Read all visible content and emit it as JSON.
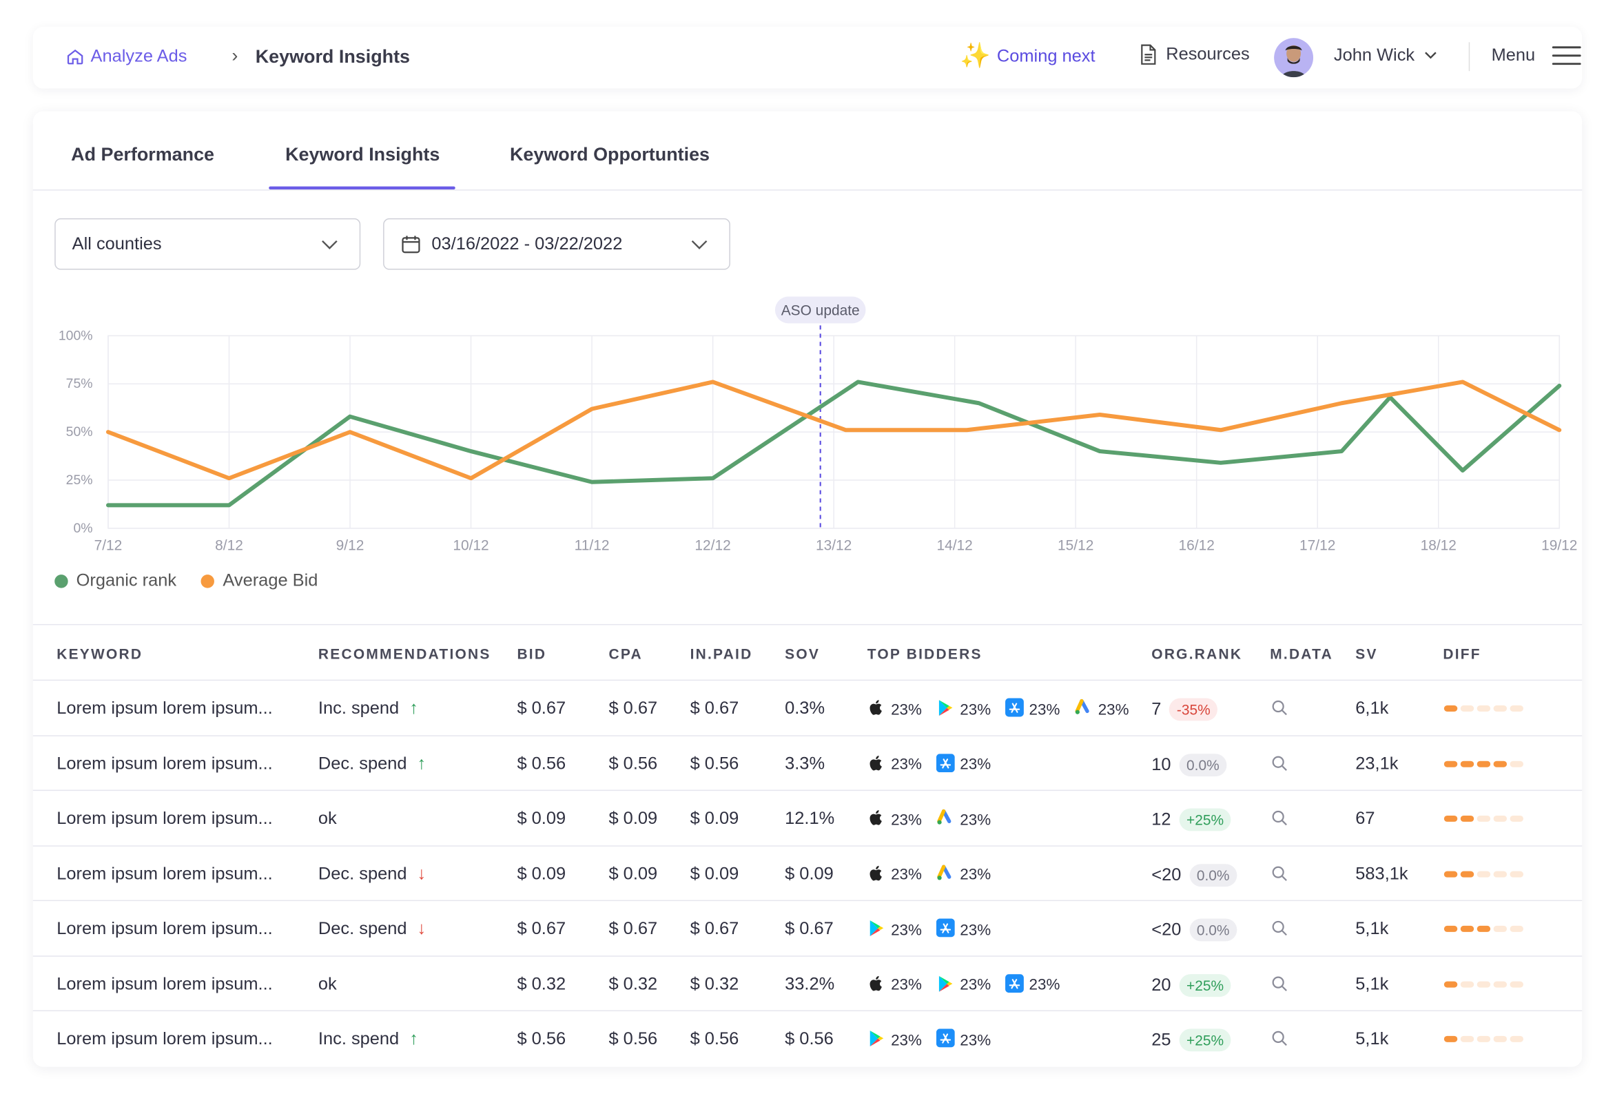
{
  "breadcrumb": {
    "home": "Analyze Ads",
    "current": "Keyword Insights"
  },
  "header": {
    "coming_next": "Coming next",
    "resources": "Resources",
    "user_name": "John Wick",
    "menu": "Menu"
  },
  "tabs": [
    {
      "label": "Ad Performance",
      "active": false
    },
    {
      "label": "Keyword Insights",
      "active": true
    },
    {
      "label": "Keyword Opportunties",
      "active": false
    }
  ],
  "filters": {
    "country": "All counties",
    "date_range": "03/16/2022 - 03/22/2022"
  },
  "chart_data": {
    "type": "line",
    "annotation": {
      "label": "ASO update",
      "x": "13/12"
    },
    "x": [
      "7/12",
      "8/12",
      "9/12",
      "10/12",
      "11/12",
      "12/12",
      "13/12",
      "14/12",
      "15/12",
      "16/12",
      "17/12",
      "18/12",
      "19/12"
    ],
    "yticks": [
      "0%",
      "25%",
      "50%",
      "75%",
      "100%"
    ],
    "ylim": [
      0,
      100
    ],
    "series": [
      {
        "name": "Organic rank",
        "color": "#5aa06e",
        "points": [
          [
            0,
            12
          ],
          [
            1,
            12
          ],
          [
            2,
            58
          ],
          [
            3,
            40
          ],
          [
            4,
            24
          ],
          [
            5,
            26
          ],
          [
            6.2,
            76
          ],
          [
            7.2,
            65
          ],
          [
            8.2,
            40
          ],
          [
            9.2,
            34
          ],
          [
            10.2,
            40
          ],
          [
            10.6,
            68
          ],
          [
            11.2,
            30
          ],
          [
            12,
            74
          ]
        ]
      },
      {
        "name": "Average Bid",
        "color": "#f79a3e",
        "points": [
          [
            0,
            50
          ],
          [
            1,
            26
          ],
          [
            2,
            50
          ],
          [
            3,
            26
          ],
          [
            4,
            62
          ],
          [
            5,
            76
          ],
          [
            6.1,
            51
          ],
          [
            7.1,
            51
          ],
          [
            8.2,
            59
          ],
          [
            9.2,
            51
          ],
          [
            10.2,
            65
          ],
          [
            11.2,
            76
          ],
          [
            12,
            51
          ]
        ]
      }
    ],
    "colors": {
      "organic": "#5aa06e",
      "bid": "#f79a3e",
      "annotation": "#5a4be0"
    }
  },
  "table": {
    "columns": [
      "KEYWORD",
      "RECOMMENDATIONS",
      "BID",
      "CPA",
      "IN.PAID",
      "SOV",
      "TOP BIDDERS",
      "ORG.RANK",
      "M.DATA",
      "SV",
      "DIFF"
    ],
    "rows": [
      {
        "keyword": "Lorem ipsum lorem ipsum...",
        "rec": "Inc. spend",
        "dir": "up",
        "bid": "$ 0.67",
        "cpa": "$ 0.67",
        "inpaid": "$ 0.67",
        "sov": "0.3%",
        "bidders": [
          {
            "icon": "apple-icon",
            "pct": "23%"
          },
          {
            "icon": "google-play-icon",
            "pct": "23%"
          },
          {
            "icon": "app-store-icon",
            "pct": "23%"
          },
          {
            "icon": "google-ads-icon",
            "pct": "23%"
          }
        ],
        "rank": "7",
        "change": "-35%",
        "change_type": "neg",
        "sv": "6,1k",
        "diff": 1
      },
      {
        "keyword": "Lorem ipsum lorem ipsum...",
        "rec": "Dec. spend",
        "dir": "up",
        "bid": "$ 0.56",
        "cpa": "$ 0.56",
        "inpaid": "$ 0.56",
        "sov": "3.3%",
        "bidders": [
          {
            "icon": "apple-icon",
            "pct": "23%"
          },
          {
            "icon": "app-store-icon",
            "pct": "23%"
          }
        ],
        "rank": "10",
        "change": "0.0%",
        "change_type": "neu",
        "sv": "23,1k",
        "diff": 4
      },
      {
        "keyword": "Lorem ipsum lorem ipsum...",
        "rec": "ok",
        "dir": "",
        "bid": "$ 0.09",
        "cpa": "$ 0.09",
        "inpaid": "$ 0.09",
        "sov": "12.1%",
        "bidders": [
          {
            "icon": "apple-icon",
            "pct": "23%"
          },
          {
            "icon": "google-ads-icon",
            "pct": "23%"
          }
        ],
        "rank": "12",
        "change": "+25%",
        "change_type": "pos",
        "sv": "67",
        "diff": 2
      },
      {
        "keyword": "Lorem ipsum lorem ipsum...",
        "rec": "Dec. spend",
        "dir": "down",
        "bid": "$ 0.09",
        "cpa": "$ 0.09",
        "inpaid": "$ 0.09",
        "sov": "$ 0.09",
        "bidders": [
          {
            "icon": "apple-icon",
            "pct": "23%"
          },
          {
            "icon": "google-ads-icon",
            "pct": "23%"
          }
        ],
        "rank": "<20",
        "change": "0.0%",
        "change_type": "neu",
        "sv": "583,1k",
        "diff": 2
      },
      {
        "keyword": "Lorem ipsum lorem ipsum...",
        "rec": "Dec. spend",
        "dir": "down",
        "bid": "$ 0.67",
        "cpa": "$ 0.67",
        "inpaid": "$ 0.67",
        "sov": "$ 0.67",
        "bidders": [
          {
            "icon": "google-play-icon",
            "pct": "23%"
          },
          {
            "icon": "app-store-icon",
            "pct": "23%"
          }
        ],
        "rank": "<20",
        "change": "0.0%",
        "change_type": "neu",
        "sv": "5,1k",
        "diff": 3
      },
      {
        "keyword": "Lorem ipsum lorem ipsum...",
        "rec": "ok",
        "dir": "",
        "bid": "$ 0.32",
        "cpa": "$ 0.32",
        "inpaid": "$ 0.32",
        "sov": "33.2%",
        "bidders": [
          {
            "icon": "apple-icon",
            "pct": "23%"
          },
          {
            "icon": "google-play-icon",
            "pct": "23%"
          },
          {
            "icon": "app-store-icon",
            "pct": "23%"
          }
        ],
        "rank": "20",
        "change": "+25%",
        "change_type": "pos",
        "sv": "5,1k",
        "diff": 1
      },
      {
        "keyword": "Lorem ipsum lorem ipsum...",
        "rec": "Inc. spend",
        "dir": "up",
        "bid": "$ 0.56",
        "cpa": "$ 0.56",
        "inpaid": "$ 0.56",
        "sov": "$ 0.56",
        "bidders": [
          {
            "icon": "google-play-icon",
            "pct": "23%"
          },
          {
            "icon": "app-store-icon",
            "pct": "23%"
          }
        ],
        "rank": "25",
        "change": "+25%",
        "change_type": "pos",
        "sv": "5,1k",
        "diff": 1
      }
    ]
  }
}
